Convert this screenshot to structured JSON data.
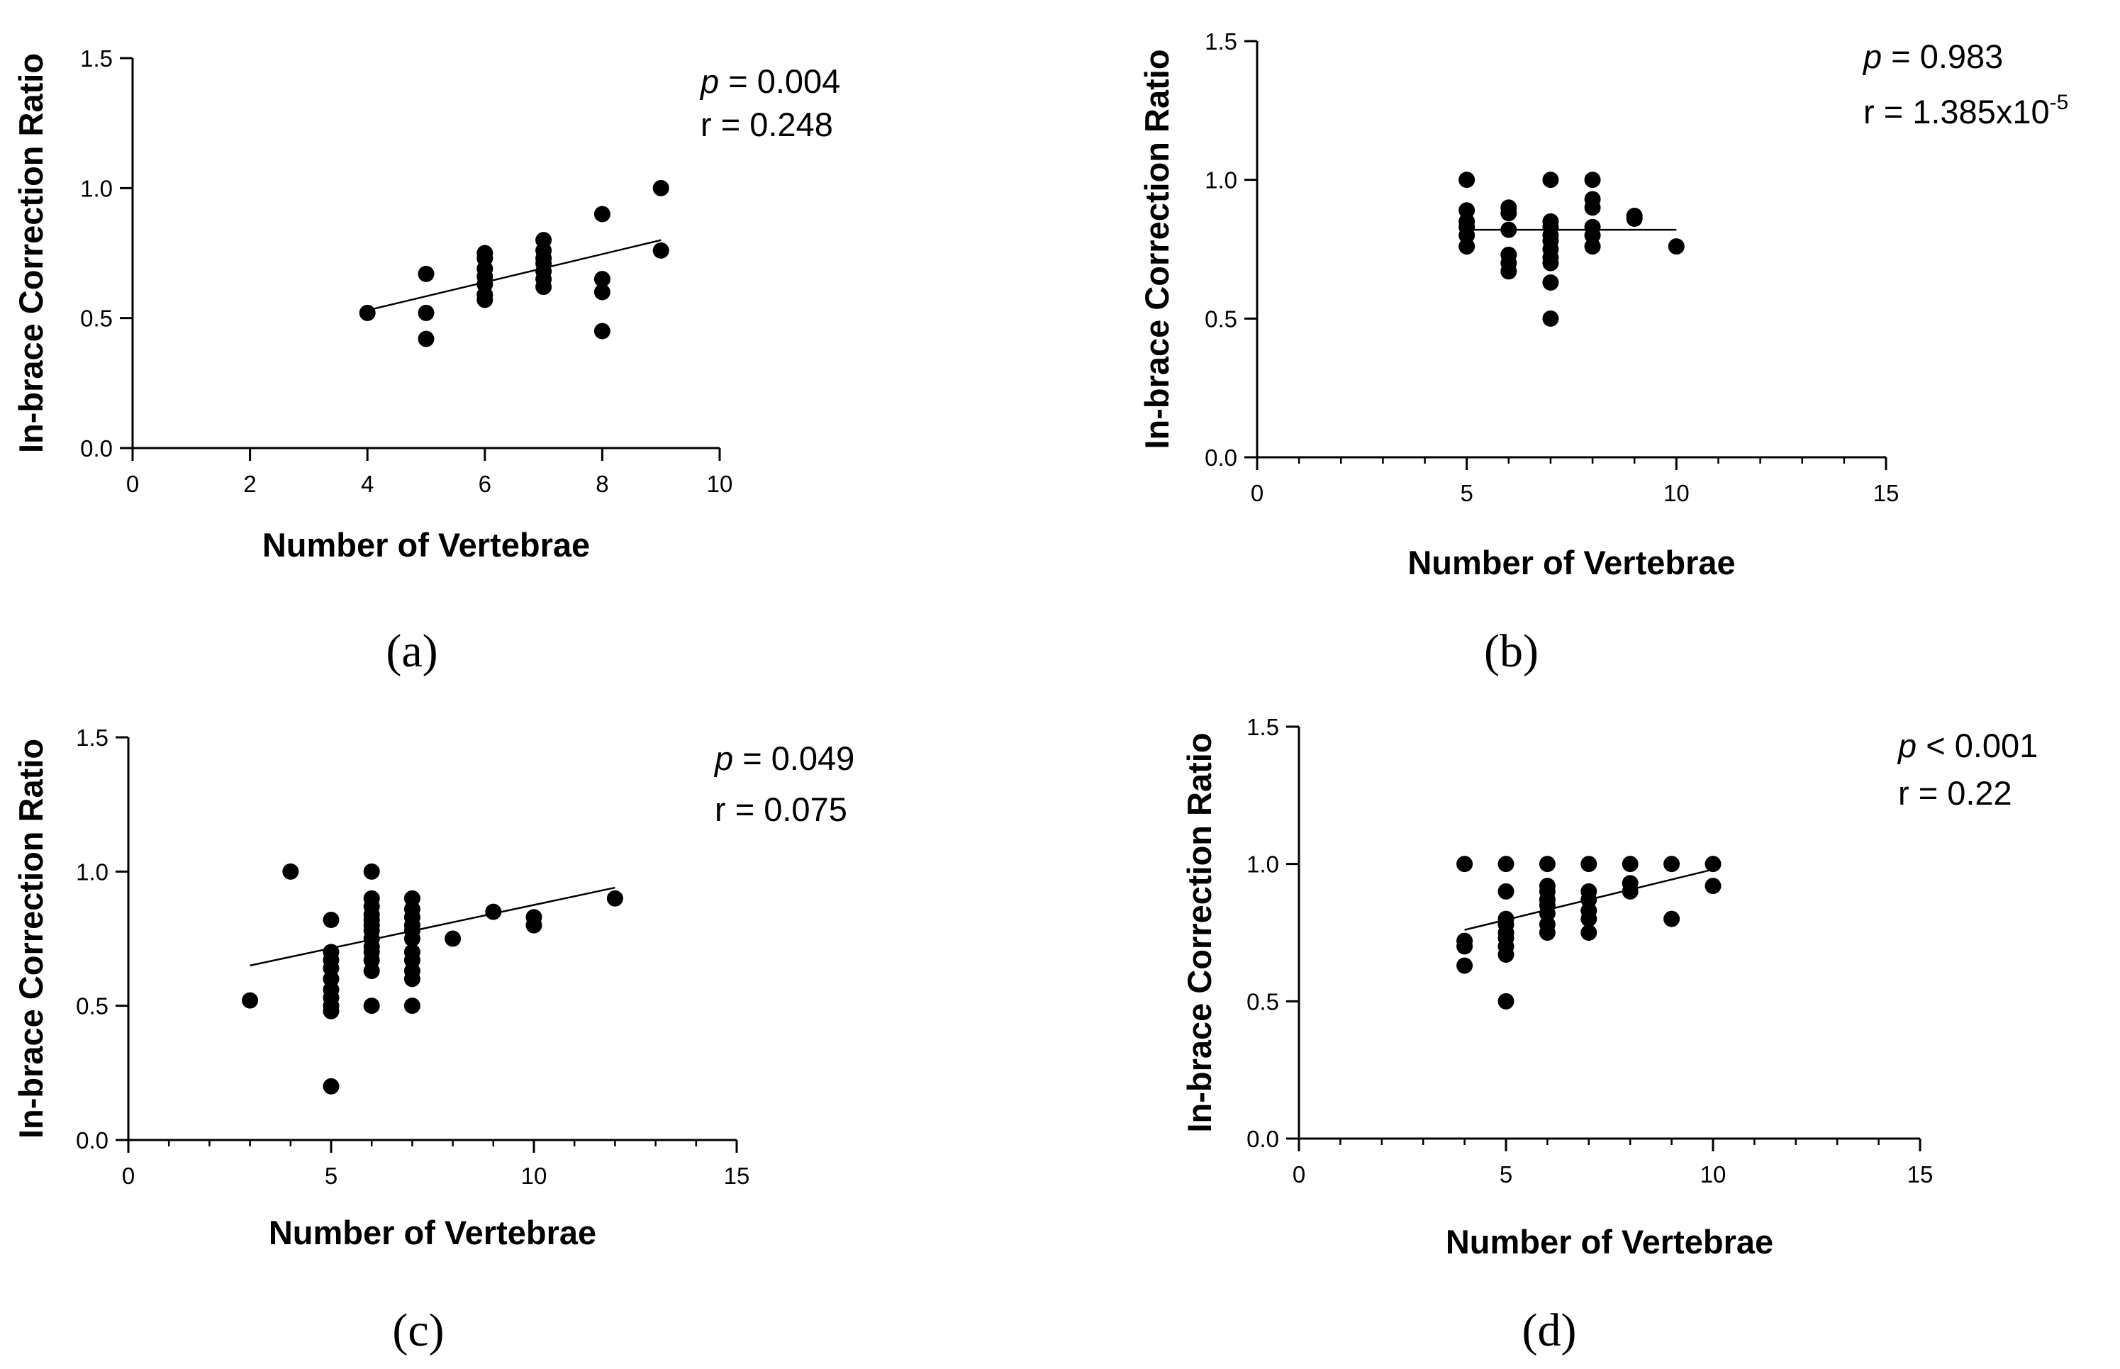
{
  "chart_data": [
    {
      "type": "scatter",
      "panel_label": "(a)",
      "xlabel": "Number of Vertebrae",
      "ylabel": "In-brace Correction Ratio",
      "xlim": [
        0,
        10
      ],
      "ylim": [
        0,
        1.5
      ],
      "xticks": [
        0,
        2,
        4,
        6,
        8,
        10
      ],
      "xtick_labels": [
        "0",
        "2",
        "4",
        "6",
        "8",
        "10"
      ],
      "yticks": [
        0,
        0.5,
        1.0,
        1.5
      ],
      "ytick_labels": [
        "0.0",
        "0.5",
        "1.0",
        "1.5"
      ],
      "minor_x_step": null,
      "annotation": {
        "p_symbol": "p",
        "p_text": " = 0.004",
        "r_text": "r = 0.248",
        "r_exp": ""
      },
      "points": [
        [
          4,
          0.52
        ],
        [
          5,
          0.67
        ],
        [
          5,
          0.52
        ],
        [
          5,
          0.42
        ],
        [
          6,
          0.75
        ],
        [
          6,
          0.73
        ],
        [
          6,
          0.69
        ],
        [
          6,
          0.66
        ],
        [
          6,
          0.63
        ],
        [
          6,
          0.59
        ],
        [
          6,
          0.57
        ],
        [
          7,
          0.8
        ],
        [
          7,
          0.76
        ],
        [
          7,
          0.73
        ],
        [
          7,
          0.71
        ],
        [
          7,
          0.68
        ],
        [
          7,
          0.65
        ],
        [
          7,
          0.62
        ],
        [
          8,
          0.9
        ],
        [
          8,
          0.65
        ],
        [
          8,
          0.6
        ],
        [
          8,
          0.45
        ],
        [
          9,
          1.0
        ],
        [
          9,
          0.76
        ]
      ],
      "fit_line": {
        "x": [
          4,
          9
        ],
        "y": [
          0.53,
          0.8
        ]
      }
    },
    {
      "type": "scatter",
      "panel_label": "(b)",
      "xlabel": "Number of Vertebrae",
      "ylabel": "In-brace Correction Ratio",
      "xlim": [
        0,
        15
      ],
      "ylim": [
        0,
        1.5
      ],
      "xticks": [
        0,
        5,
        10,
        15
      ],
      "xtick_labels": [
        "0",
        "5",
        "10",
        "15"
      ],
      "yticks": [
        0,
        0.5,
        1.0,
        1.5
      ],
      "ytick_labels": [
        "0.0",
        "0.5",
        "1.0",
        "1.5"
      ],
      "minor_x_step": 1,
      "annotation": {
        "p_symbol": "p",
        "p_text": " = 0.983",
        "r_text": "r = 1.385x10",
        "r_exp": "-5"
      },
      "points": [
        [
          5,
          1.0
        ],
        [
          5,
          0.89
        ],
        [
          5,
          0.85
        ],
        [
          5,
          0.83
        ],
        [
          5,
          0.8
        ],
        [
          5,
          0.76
        ],
        [
          6,
          0.9
        ],
        [
          6,
          0.88
        ],
        [
          6,
          0.82
        ],
        [
          6,
          0.73
        ],
        [
          6,
          0.7
        ],
        [
          6,
          0.67
        ],
        [
          7,
          1.0
        ],
        [
          7,
          0.85
        ],
        [
          7,
          0.83
        ],
        [
          7,
          0.8
        ],
        [
          7,
          0.78
        ],
        [
          7,
          0.75
        ],
        [
          7,
          0.72
        ],
        [
          7,
          0.7
        ],
        [
          7,
          0.63
        ],
        [
          7,
          0.5
        ],
        [
          8,
          1.0
        ],
        [
          8,
          0.93
        ],
        [
          8,
          0.9
        ],
        [
          8,
          0.83
        ],
        [
          8,
          0.8
        ],
        [
          8,
          0.76
        ],
        [
          9,
          0.87
        ],
        [
          9,
          0.86
        ],
        [
          10,
          0.76
        ]
      ],
      "fit_line": {
        "x": [
          5,
          10
        ],
        "y": [
          0.82,
          0.82
        ]
      }
    },
    {
      "type": "scatter",
      "panel_label": "(c)",
      "xlabel": "Number of Vertebrae",
      "ylabel": "In-brace Correction Ratio",
      "xlim": [
        0,
        15
      ],
      "ylim": [
        0,
        1.5
      ],
      "xticks": [
        0,
        5,
        10,
        15
      ],
      "xtick_labels": [
        "0",
        "5",
        "10",
        "15"
      ],
      "yticks": [
        0,
        0.5,
        1.0,
        1.5
      ],
      "ytick_labels": [
        "0.0",
        "0.5",
        "1.0",
        "1.5"
      ],
      "minor_x_step": 1,
      "annotation": {
        "p_symbol": "p",
        "p_text": " = 0.049",
        "r_text": "r = 0.075",
        "r_exp": ""
      },
      "points": [
        [
          3,
          0.52
        ],
        [
          4,
          1.0
        ],
        [
          5,
          0.82
        ],
        [
          5,
          0.7
        ],
        [
          5,
          0.67
        ],
        [
          5,
          0.64
        ],
        [
          5,
          0.6
        ],
        [
          5,
          0.56
        ],
        [
          5,
          0.53
        ],
        [
          5,
          0.5
        ],
        [
          5,
          0.48
        ],
        [
          5,
          0.2
        ],
        [
          6,
          1.0
        ],
        [
          6,
          0.9
        ],
        [
          6,
          0.87
        ],
        [
          6,
          0.84
        ],
        [
          6,
          0.82
        ],
        [
          6,
          0.8
        ],
        [
          6,
          0.78
        ],
        [
          6,
          0.75
        ],
        [
          6,
          0.72
        ],
        [
          6,
          0.7
        ],
        [
          6,
          0.67
        ],
        [
          6,
          0.63
        ],
        [
          6,
          0.5
        ],
        [
          7,
          0.9
        ],
        [
          7,
          0.86
        ],
        [
          7,
          0.83
        ],
        [
          7,
          0.8
        ],
        [
          7,
          0.78
        ],
        [
          7,
          0.75
        ],
        [
          7,
          0.7
        ],
        [
          7,
          0.67
        ],
        [
          7,
          0.63
        ],
        [
          7,
          0.6
        ],
        [
          7,
          0.5
        ],
        [
          8,
          0.75
        ],
        [
          9,
          0.85
        ],
        [
          10,
          0.83
        ],
        [
          10,
          0.8
        ],
        [
          12,
          0.9
        ]
      ],
      "fit_line": {
        "x": [
          3,
          12
        ],
        "y": [
          0.65,
          0.94
        ]
      }
    },
    {
      "type": "scatter",
      "panel_label": "(d)",
      "xlabel": "Number of Vertebrae",
      "ylabel": "In-brace Correction Ratio",
      "xlim": [
        0,
        15
      ],
      "ylim": [
        0,
        1.5
      ],
      "xticks": [
        0,
        5,
        10,
        15
      ],
      "xtick_labels": [
        "0",
        "5",
        "10",
        "15"
      ],
      "yticks": [
        0,
        0.5,
        1.0,
        1.5
      ],
      "ytick_labels": [
        "0.0",
        "0.5",
        "1.0",
        "1.5"
      ],
      "minor_x_step": 1,
      "annotation": {
        "p_symbol": "p",
        "p_text": " < 0.001",
        "r_text": "r = 0.22",
        "r_exp": ""
      },
      "points": [
        [
          4,
          1.0
        ],
        [
          4,
          0.72
        ],
        [
          4,
          0.7
        ],
        [
          4,
          0.63
        ],
        [
          5,
          1.0
        ],
        [
          5,
          0.9
        ],
        [
          5,
          0.8
        ],
        [
          5,
          0.78
        ],
        [
          5,
          0.75
        ],
        [
          5,
          0.73
        ],
        [
          5,
          0.7
        ],
        [
          5,
          0.67
        ],
        [
          5,
          0.5
        ],
        [
          6,
          1.0
        ],
        [
          6,
          0.92
        ],
        [
          6,
          0.9
        ],
        [
          6,
          0.87
        ],
        [
          6,
          0.85
        ],
        [
          6,
          0.82
        ],
        [
          6,
          0.78
        ],
        [
          6,
          0.75
        ],
        [
          7,
          1.0
        ],
        [
          7,
          0.9
        ],
        [
          7,
          0.87
        ],
        [
          7,
          0.83
        ],
        [
          7,
          0.8
        ],
        [
          7,
          0.75
        ],
        [
          8,
          1.0
        ],
        [
          8,
          0.93
        ],
        [
          8,
          0.9
        ],
        [
          9,
          1.0
        ],
        [
          9,
          0.8
        ],
        [
          10,
          1.0
        ],
        [
          10,
          0.92
        ]
      ],
      "fit_line": {
        "x": [
          4,
          10
        ],
        "y": [
          0.76,
          0.98
        ]
      }
    }
  ]
}
